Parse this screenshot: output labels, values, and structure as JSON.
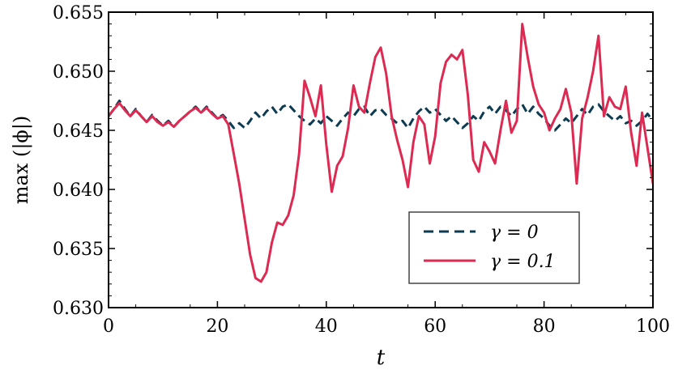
{
  "chart_data": {
    "type": "line",
    "xlabel": "t",
    "ylabel": "max (|ϕ|)",
    "xlim": [
      0,
      100
    ],
    "ylim": [
      0.63,
      0.655
    ],
    "xticks": [
      0,
      20,
      40,
      60,
      80,
      100
    ],
    "yticks": [
      0.63,
      0.635,
      0.64,
      0.645,
      0.65,
      0.655
    ],
    "ytick_labels": [
      "0.630",
      "0.635",
      "0.640",
      "0.645",
      "0.650",
      "0.655"
    ],
    "grid": false,
    "legend_position": "lower-right",
    "series": [
      {
        "name": "γ = 0",
        "color": "#0d3b52",
        "style": "dashed",
        "x": [
          0,
          1,
          2,
          3,
          4,
          5,
          6,
          7,
          8,
          9,
          10,
          11,
          12,
          13,
          14,
          15,
          16,
          17,
          18,
          19,
          20,
          21,
          22,
          23,
          24,
          25,
          26,
          27,
          28,
          29,
          30,
          31,
          32,
          33,
          34,
          35,
          36,
          37,
          38,
          39,
          40,
          41,
          42,
          43,
          44,
          45,
          46,
          47,
          48,
          49,
          50,
          51,
          52,
          53,
          54,
          55,
          56,
          57,
          58,
          59,
          60,
          61,
          62,
          63,
          64,
          65,
          66,
          67,
          68,
          69,
          70,
          71,
          72,
          73,
          74,
          75,
          76,
          77,
          78,
          79,
          80,
          81,
          82,
          83,
          84,
          85,
          86,
          87,
          88,
          89,
          90,
          91,
          92,
          93,
          94,
          95,
          96,
          97,
          98,
          99,
          100
        ],
        "y": [
          0.6462,
          0.6468,
          0.6475,
          0.6468,
          0.6462,
          0.6468,
          0.6462,
          0.6457,
          0.6463,
          0.6458,
          0.6454,
          0.6458,
          0.6453,
          0.6458,
          0.6462,
          0.6466,
          0.647,
          0.6465,
          0.647,
          0.6465,
          0.646,
          0.6463,
          0.6458,
          0.6452,
          0.6456,
          0.6452,
          0.6458,
          0.6465,
          0.646,
          0.6466,
          0.647,
          0.6464,
          0.647,
          0.6472,
          0.6467,
          0.6462,
          0.6458,
          0.6455,
          0.646,
          0.6456,
          0.6462,
          0.6458,
          0.6454,
          0.646,
          0.6465,
          0.6462,
          0.6468,
          0.647,
          0.6462,
          0.6467,
          0.6468,
          0.6463,
          0.646,
          0.6456,
          0.6458,
          0.6452,
          0.646,
          0.6466,
          0.647,
          0.6465,
          0.6468,
          0.6463,
          0.6458,
          0.6462,
          0.6457,
          0.6452,
          0.6456,
          0.6462,
          0.6458,
          0.6466,
          0.647,
          0.6464,
          0.647,
          0.6467,
          0.6462,
          0.6468,
          0.6472,
          0.6464,
          0.647,
          0.6464,
          0.646,
          0.6454,
          0.645,
          0.6455,
          0.646,
          0.6456,
          0.6462,
          0.6468,
          0.6463,
          0.647,
          0.6472,
          0.6466,
          0.6462,
          0.6458,
          0.6462,
          0.6456,
          0.6458,
          0.6454,
          0.6458,
          0.6464,
          0.6458
        ]
      },
      {
        "name": "γ = 0.1",
        "color": "#dc2a52",
        "style": "solid",
        "x": [
          0,
          1,
          2,
          3,
          4,
          5,
          6,
          7,
          8,
          9,
          10,
          11,
          12,
          13,
          14,
          15,
          16,
          17,
          18,
          19,
          20,
          21,
          22,
          23,
          24,
          25,
          26,
          27,
          28,
          29,
          30,
          31,
          32,
          33,
          34,
          35,
          36,
          37,
          38,
          39,
          40,
          41,
          42,
          43,
          44,
          45,
          46,
          47,
          48,
          49,
          50,
          51,
          52,
          53,
          54,
          55,
          56,
          57,
          58,
          59,
          60,
          61,
          62,
          63,
          64,
          65,
          66,
          67,
          68,
          69,
          70,
          71,
          72,
          73,
          74,
          75,
          76,
          77,
          78,
          79,
          80,
          81,
          82,
          83,
          84,
          85,
          86,
          87,
          88,
          89,
          90,
          91,
          92,
          93,
          94,
          95,
          96,
          97,
          98,
          99,
          100
        ],
        "y": [
          0.6462,
          0.6468,
          0.6473,
          0.6467,
          0.6462,
          0.6467,
          0.6462,
          0.6457,
          0.6462,
          0.6457,
          0.6454,
          0.6457,
          0.6453,
          0.6458,
          0.6462,
          0.6466,
          0.6469,
          0.6465,
          0.6469,
          0.6464,
          0.646,
          0.6462,
          0.6455,
          0.643,
          0.6405,
          0.6375,
          0.6345,
          0.6325,
          0.6322,
          0.633,
          0.6355,
          0.6372,
          0.637,
          0.6378,
          0.6395,
          0.643,
          0.6492,
          0.6478,
          0.6462,
          0.6488,
          0.6438,
          0.6398,
          0.642,
          0.6428,
          0.6452,
          0.6488,
          0.647,
          0.6465,
          0.649,
          0.6512,
          0.652,
          0.6498,
          0.6462,
          0.6442,
          0.6425,
          0.6402,
          0.644,
          0.6462,
          0.6455,
          0.6422,
          0.6445,
          0.649,
          0.6508,
          0.6514,
          0.651,
          0.6518,
          0.648,
          0.6425,
          0.6415,
          0.644,
          0.6432,
          0.6422,
          0.645,
          0.6475,
          0.6448,
          0.6458,
          0.654,
          0.6512,
          0.6487,
          0.6472,
          0.6465,
          0.645,
          0.646,
          0.6468,
          0.6485,
          0.6465,
          0.6405,
          0.646,
          0.6478,
          0.65,
          0.653,
          0.6462,
          0.6478,
          0.647,
          0.6468,
          0.6487,
          0.6448,
          0.642,
          0.6465,
          0.6435,
          0.6405
        ]
      }
    ]
  }
}
